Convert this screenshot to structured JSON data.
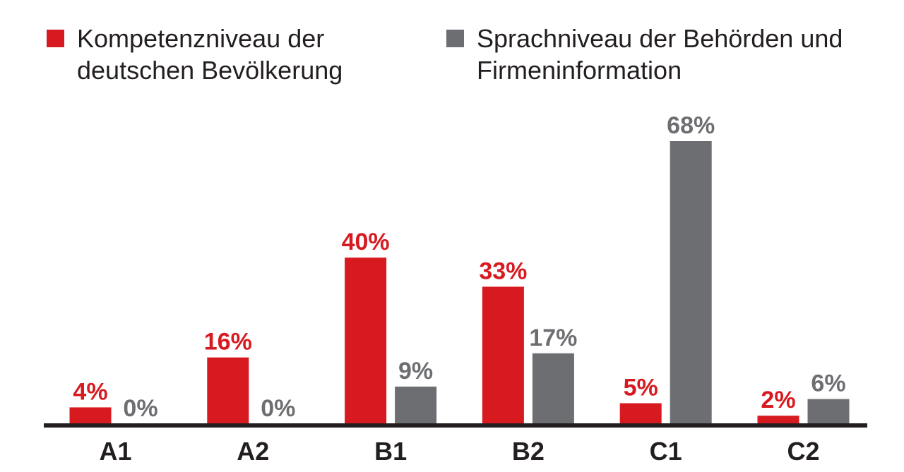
{
  "chart_data": {
    "type": "bar",
    "categories": [
      "A1",
      "A2",
      "B1",
      "B2",
      "C1",
      "C2"
    ],
    "series": [
      {
        "name": "Kompetenzniveau der deutschen Bevölkerung",
        "values": [
          4,
          16,
          40,
          33,
          5,
          2
        ],
        "labels": [
          "4%",
          "16%",
          "40%",
          "33%",
          "5%",
          "2%"
        ],
        "color": "#d71920"
      },
      {
        "name": "Sprachniveau der Behörden und Firmeninformation",
        "values": [
          0,
          0,
          9,
          17,
          68,
          6
        ],
        "labels": [
          "0%",
          "0%",
          "9%",
          "17%",
          "68%",
          "6%"
        ],
        "color": "#6d6e71"
      }
    ],
    "ylim": [
      0,
      68
    ],
    "grid": false,
    "legend_position": "top",
    "axis_color": "#231f20"
  }
}
